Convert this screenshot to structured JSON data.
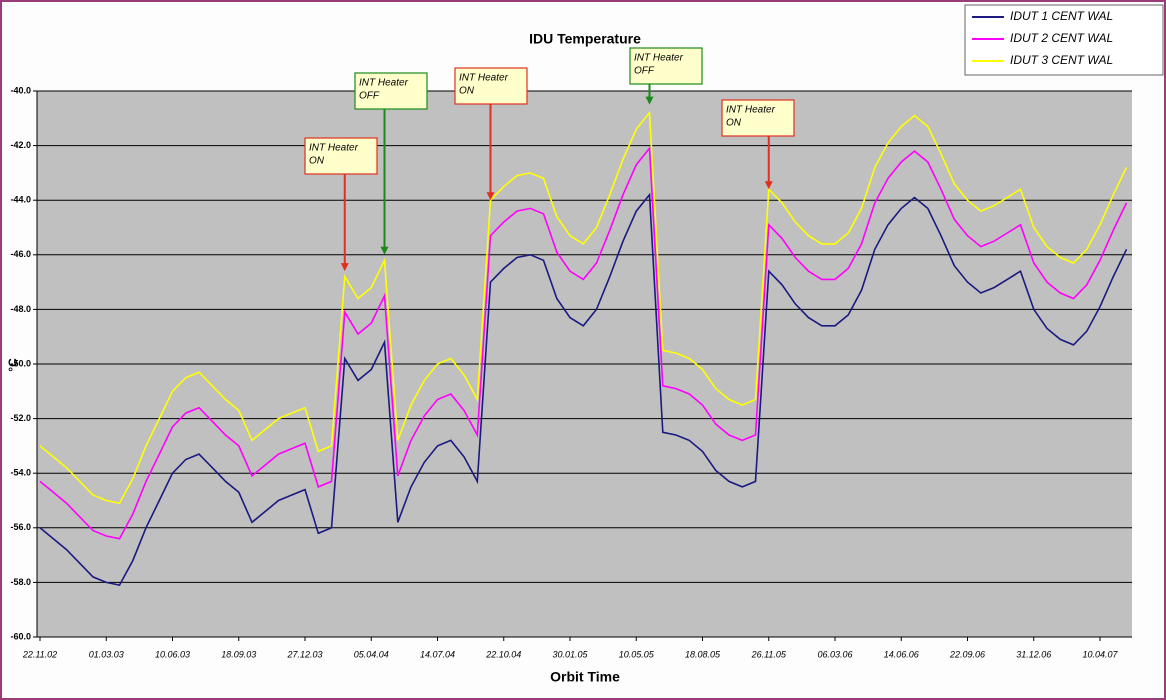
{
  "chart_data": {
    "type": "line",
    "title": "IDU Temperature",
    "x_label": "Orbit Time",
    "y_label": "°C",
    "categories": [
      "22.11.02",
      null,
      null,
      null,
      null,
      "01.03.03",
      null,
      null,
      null,
      null,
      "10.06.03",
      null,
      null,
      null,
      null,
      "18.09.03",
      null,
      null,
      null,
      null,
      "27.12.03",
      null,
      null,
      null,
      null,
      "05.04.04",
      null,
      null,
      null,
      null,
      "14.07.04",
      null,
      null,
      null,
      null,
      "22.10.04",
      null,
      null,
      null,
      null,
      "30.01.05",
      null,
      null,
      null,
      null,
      "10.05.05",
      null,
      null,
      null,
      null,
      "18.08.05",
      null,
      null,
      null,
      null,
      "26.11.05",
      null,
      null,
      null,
      null,
      "06.03.06",
      null,
      null,
      null,
      null,
      "14.06.06",
      null,
      null,
      null,
      null,
      "22.09.06",
      null,
      null,
      null,
      null,
      "31.12.06",
      null,
      null,
      null,
      null,
      "10.04.07",
      null,
      null
    ],
    "series": [
      {
        "name": "IDUT 1 CENT WAL",
        "color": "#1a1a80",
        "values": [
          -56.0,
          -56.4,
          -56.8,
          -57.3,
          -57.8,
          -58.0,
          -58.1,
          -57.2,
          -56.0,
          -55.0,
          -54.0,
          -53.5,
          -53.3,
          -53.8,
          -54.3,
          -54.7,
          -55.8,
          -55.4,
          -55.0,
          -54.8,
          -54.6,
          -56.2,
          -56.0,
          -49.8,
          -50.6,
          -50.2,
          -49.2,
          -55.8,
          -54.5,
          -53.6,
          -53.0,
          -52.8,
          -53.4,
          -54.3,
          -47.0,
          -46.5,
          -46.1,
          -46.0,
          -46.2,
          -47.6,
          -48.3,
          -48.6,
          -48.0,
          -46.8,
          -45.5,
          -44.4,
          -43.8,
          -52.5,
          -52.6,
          -52.8,
          -53.2,
          -53.9,
          -54.3,
          -54.5,
          -54.3,
          -46.6,
          -47.1,
          -47.8,
          -48.3,
          -48.6,
          -48.6,
          -48.2,
          -47.3,
          -45.8,
          -44.9,
          -44.3,
          -43.9,
          -44.3,
          -45.3,
          -46.4,
          -47.0,
          -47.4,
          -47.2,
          -46.9,
          -46.6,
          -48.0,
          -48.7,
          -49.1,
          -49.3,
          -48.8,
          -47.9,
          -46.8,
          -45.8
        ]
      },
      {
        "name": "IDUT 2 CENT WAL",
        "color": "#ff00ff",
        "values": [
          -54.3,
          -54.7,
          -55.1,
          -55.6,
          -56.1,
          -56.3,
          -56.4,
          -55.5,
          -54.3,
          -53.3,
          -52.3,
          -51.8,
          -51.6,
          -52.1,
          -52.6,
          -53.0,
          -54.1,
          -53.7,
          -53.3,
          -53.1,
          -52.9,
          -54.5,
          -54.3,
          -48.1,
          -48.9,
          -48.5,
          -47.5,
          -54.1,
          -52.8,
          -51.9,
          -51.3,
          -51.1,
          -51.7,
          -52.6,
          -45.3,
          -44.8,
          -44.4,
          -44.3,
          -44.5,
          -45.9,
          -46.6,
          -46.9,
          -46.3,
          -45.1,
          -43.8,
          -42.7,
          -42.1,
          -50.8,
          -50.9,
          -51.1,
          -51.5,
          -52.2,
          -52.6,
          -52.8,
          -52.6,
          -44.9,
          -45.4,
          -46.1,
          -46.6,
          -46.9,
          -46.9,
          -46.5,
          -45.6,
          -44.1,
          -43.2,
          -42.6,
          -42.2,
          -42.6,
          -43.6,
          -44.7,
          -45.3,
          -45.7,
          -45.5,
          -45.2,
          -44.9,
          -46.3,
          -47.0,
          -47.4,
          -47.6,
          -47.1,
          -46.2,
          -45.1,
          -44.1
        ]
      },
      {
        "name": "IDUT 3 CENT WAL",
        "color": "#ffff00",
        "values": [
          -53.0,
          -53.4,
          -53.8,
          -54.3,
          -54.8,
          -55.0,
          -55.1,
          -54.2,
          -53.0,
          -52.0,
          -51.0,
          -50.5,
          -50.3,
          -50.8,
          -51.3,
          -51.7,
          -52.8,
          -52.4,
          -52.0,
          -51.8,
          -51.6,
          -53.2,
          -53.0,
          -46.8,
          -47.6,
          -47.2,
          -46.2,
          -52.8,
          -51.5,
          -50.6,
          -50.0,
          -49.8,
          -50.4,
          -51.3,
          -44.0,
          -43.5,
          -43.1,
          -43.0,
          -43.2,
          -44.6,
          -45.3,
          -45.6,
          -45.0,
          -43.8,
          -42.5,
          -41.4,
          -40.8,
          -49.5,
          -49.6,
          -49.8,
          -50.2,
          -50.9,
          -51.3,
          -51.5,
          -51.3,
          -43.6,
          -44.1,
          -44.8,
          -45.3,
          -45.6,
          -45.6,
          -45.2,
          -44.3,
          -42.8,
          -41.9,
          -41.3,
          -40.9,
          -41.3,
          -42.3,
          -43.4,
          -44.0,
          -44.4,
          -44.2,
          -43.9,
          -43.6,
          -45.0,
          -45.7,
          -46.1,
          -46.3,
          -45.8,
          -44.9,
          -43.8,
          -42.8
        ]
      }
    ],
    "ylim": [
      -60,
      -40
    ],
    "yticks": [
      {
        "value": -60,
        "label": "-60.0"
      },
      {
        "value": -58,
        "label": "-58.0"
      },
      {
        "value": -56,
        "label": "-56.0"
      },
      {
        "value": -54,
        "label": "-54.0"
      },
      {
        "value": -52,
        "label": "-52.0"
      },
      {
        "value": -50,
        "label": "-50.0"
      },
      {
        "value": -48,
        "label": "-48.0"
      },
      {
        "value": -46,
        "label": "-46.0"
      },
      {
        "value": -44,
        "label": "-44.0"
      },
      {
        "value": -42,
        "label": "-42.0"
      },
      {
        "value": -40,
        "label": "-40.0"
      }
    ],
    "grid": true,
    "legend": "top-right",
    "annotations": [
      {
        "text": [
          "INT Heater",
          "ON"
        ],
        "x": 23,
        "y": -46.6,
        "color": "#e03020"
      },
      {
        "text": [
          "INT Heater",
          "OFF"
        ],
        "x": 26,
        "y": -46.0,
        "color": "#1a8a1a"
      },
      {
        "text": [
          "INT Heater",
          "ON"
        ],
        "x": 34,
        "y": -44.0,
        "color": "#e03020"
      },
      {
        "text": [
          "INT Heater",
          "OFF"
        ],
        "x": 46,
        "y": -40.5,
        "color": "#1a8a1a"
      },
      {
        "text": [
          "INT Heater",
          "ON"
        ],
        "x": 55,
        "y": -43.6,
        "color": "#e03020"
      }
    ]
  }
}
